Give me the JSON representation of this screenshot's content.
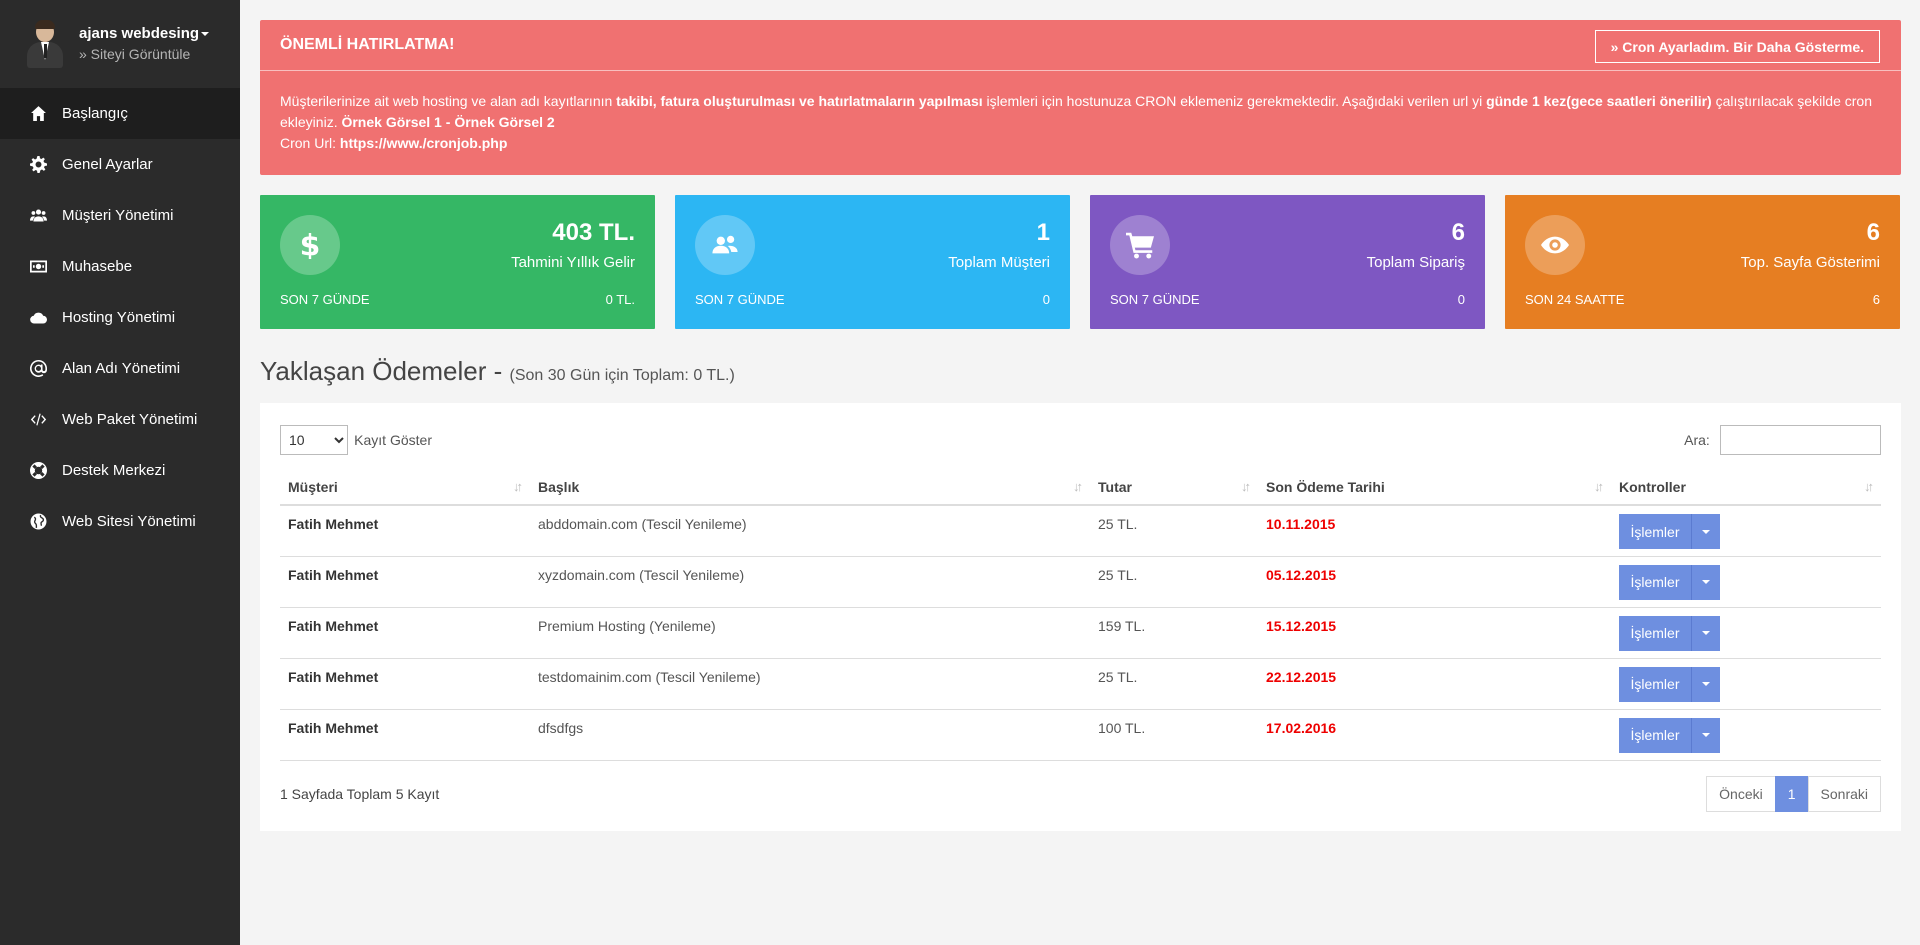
{
  "profile": {
    "name": "ajans webdesing",
    "link": "» Siteyi Görüntüle"
  },
  "menu": [
    {
      "label": "Başlangıç",
      "icon": "home-icon",
      "active": true
    },
    {
      "label": "Genel Ayarlar",
      "icon": "gear-icon"
    },
    {
      "label": "Müşteri Yönetimi",
      "icon": "users-icon"
    },
    {
      "label": "Muhasebe",
      "icon": "money-icon"
    },
    {
      "label": "Hosting Yönetimi",
      "icon": "cloud-icon"
    },
    {
      "label": "Alan Adı Yönetimi",
      "icon": "at-icon"
    },
    {
      "label": "Web Paket Yönetimi",
      "icon": "code-icon"
    },
    {
      "label": "Destek Merkezi",
      "icon": "lifebuoy-icon"
    },
    {
      "label": "Web Sitesi Yönetimi",
      "icon": "globe-icon"
    }
  ],
  "alert": {
    "title": "ÖNEMLİ HATIRLATMA!",
    "button": "» Cron Ayarladım. Bir Daha Gösterme.",
    "p1": "Müşterilerinize ait web hosting ve alan adı kayıtlarının ",
    "b1": "takibi, fatura oluşturulması ve hatırlatmaların yapılması",
    "p2": " işlemleri için hostunuza CRON eklemeniz gerekmektedir. Aşağıdaki verilen url yi ",
    "b2": "günde 1 kez(gece saatleri önerilir)",
    "p3": " çalıştırılacak şekilde cron ekleyiniz. ",
    "example1": "Örnek Görsel 1",
    "sep": " - ",
    "example2": "Örnek Görsel 2",
    "cron_label": "Cron Url: ",
    "cron_url": "https://www./cronjob.php"
  },
  "stats": [
    {
      "value": "403 TL.",
      "label": "Tahmini Yıllık Gelir",
      "foot_label": "SON 7 GÜNDE",
      "foot_value": "0 TL.",
      "color": "#35b765",
      "icon": "dollar-icon"
    },
    {
      "value": "1",
      "label": "Toplam Müşteri",
      "foot_label": "SON 7 GÜNDE",
      "foot_value": "0",
      "color": "#2cb6f3",
      "icon": "users-chat-icon"
    },
    {
      "value": "6",
      "label": "Toplam Sipariş",
      "foot_label": "SON 7 GÜNDE",
      "foot_value": "0",
      "color": "#7e57c2",
      "icon": "cart-icon"
    },
    {
      "value": "6",
      "label": "Top. Sayfa Gösterimi",
      "foot_label": "SON 24 SAATTE",
      "foot_value": "6",
      "color": "#e67e22",
      "icon": "eye-icon"
    }
  ],
  "section": {
    "title": "Yaklaşan Ödemeler - ",
    "subtitle": "(Son 30 Gün için Toplam: 0 TL.)"
  },
  "table": {
    "length_value": "10",
    "length_label": "Kayıt Göster",
    "search_label": "Ara:",
    "columns": [
      "Müşteri",
      "Başlık",
      "Tutar",
      "Son Ödeme Tarihi",
      "Kontroller"
    ],
    "rows": [
      {
        "customer": "Fatih Mehmet",
        "title": "abddomain.com (Tescil Yenileme)",
        "amount": "25 TL.",
        "due": "10.11.2015",
        "action": "İşlemler"
      },
      {
        "customer": "Fatih Mehmet",
        "title": "xyzdomain.com (Tescil Yenileme)",
        "amount": "25 TL.",
        "due": "05.12.2015",
        "action": "İşlemler"
      },
      {
        "customer": "Fatih Mehmet",
        "title": "Premium Hosting (Yenileme)",
        "amount": "159 TL.",
        "due": "15.12.2015",
        "action": "İşlemler"
      },
      {
        "customer": "Fatih Mehmet",
        "title": "testdomainim.com (Tescil Yenileme)",
        "amount": "25 TL.",
        "due": "22.12.2015",
        "action": "İşlemler"
      },
      {
        "customer": "Fatih Mehmet",
        "title": "dfsdfgs",
        "amount": "100 TL.",
        "due": "17.02.2016",
        "action": "İşlemler"
      }
    ],
    "info": "1 Sayfada Toplam 5 Kayıt",
    "pager": {
      "prev": "Önceki",
      "current": "1",
      "next": "Sonraki"
    }
  }
}
